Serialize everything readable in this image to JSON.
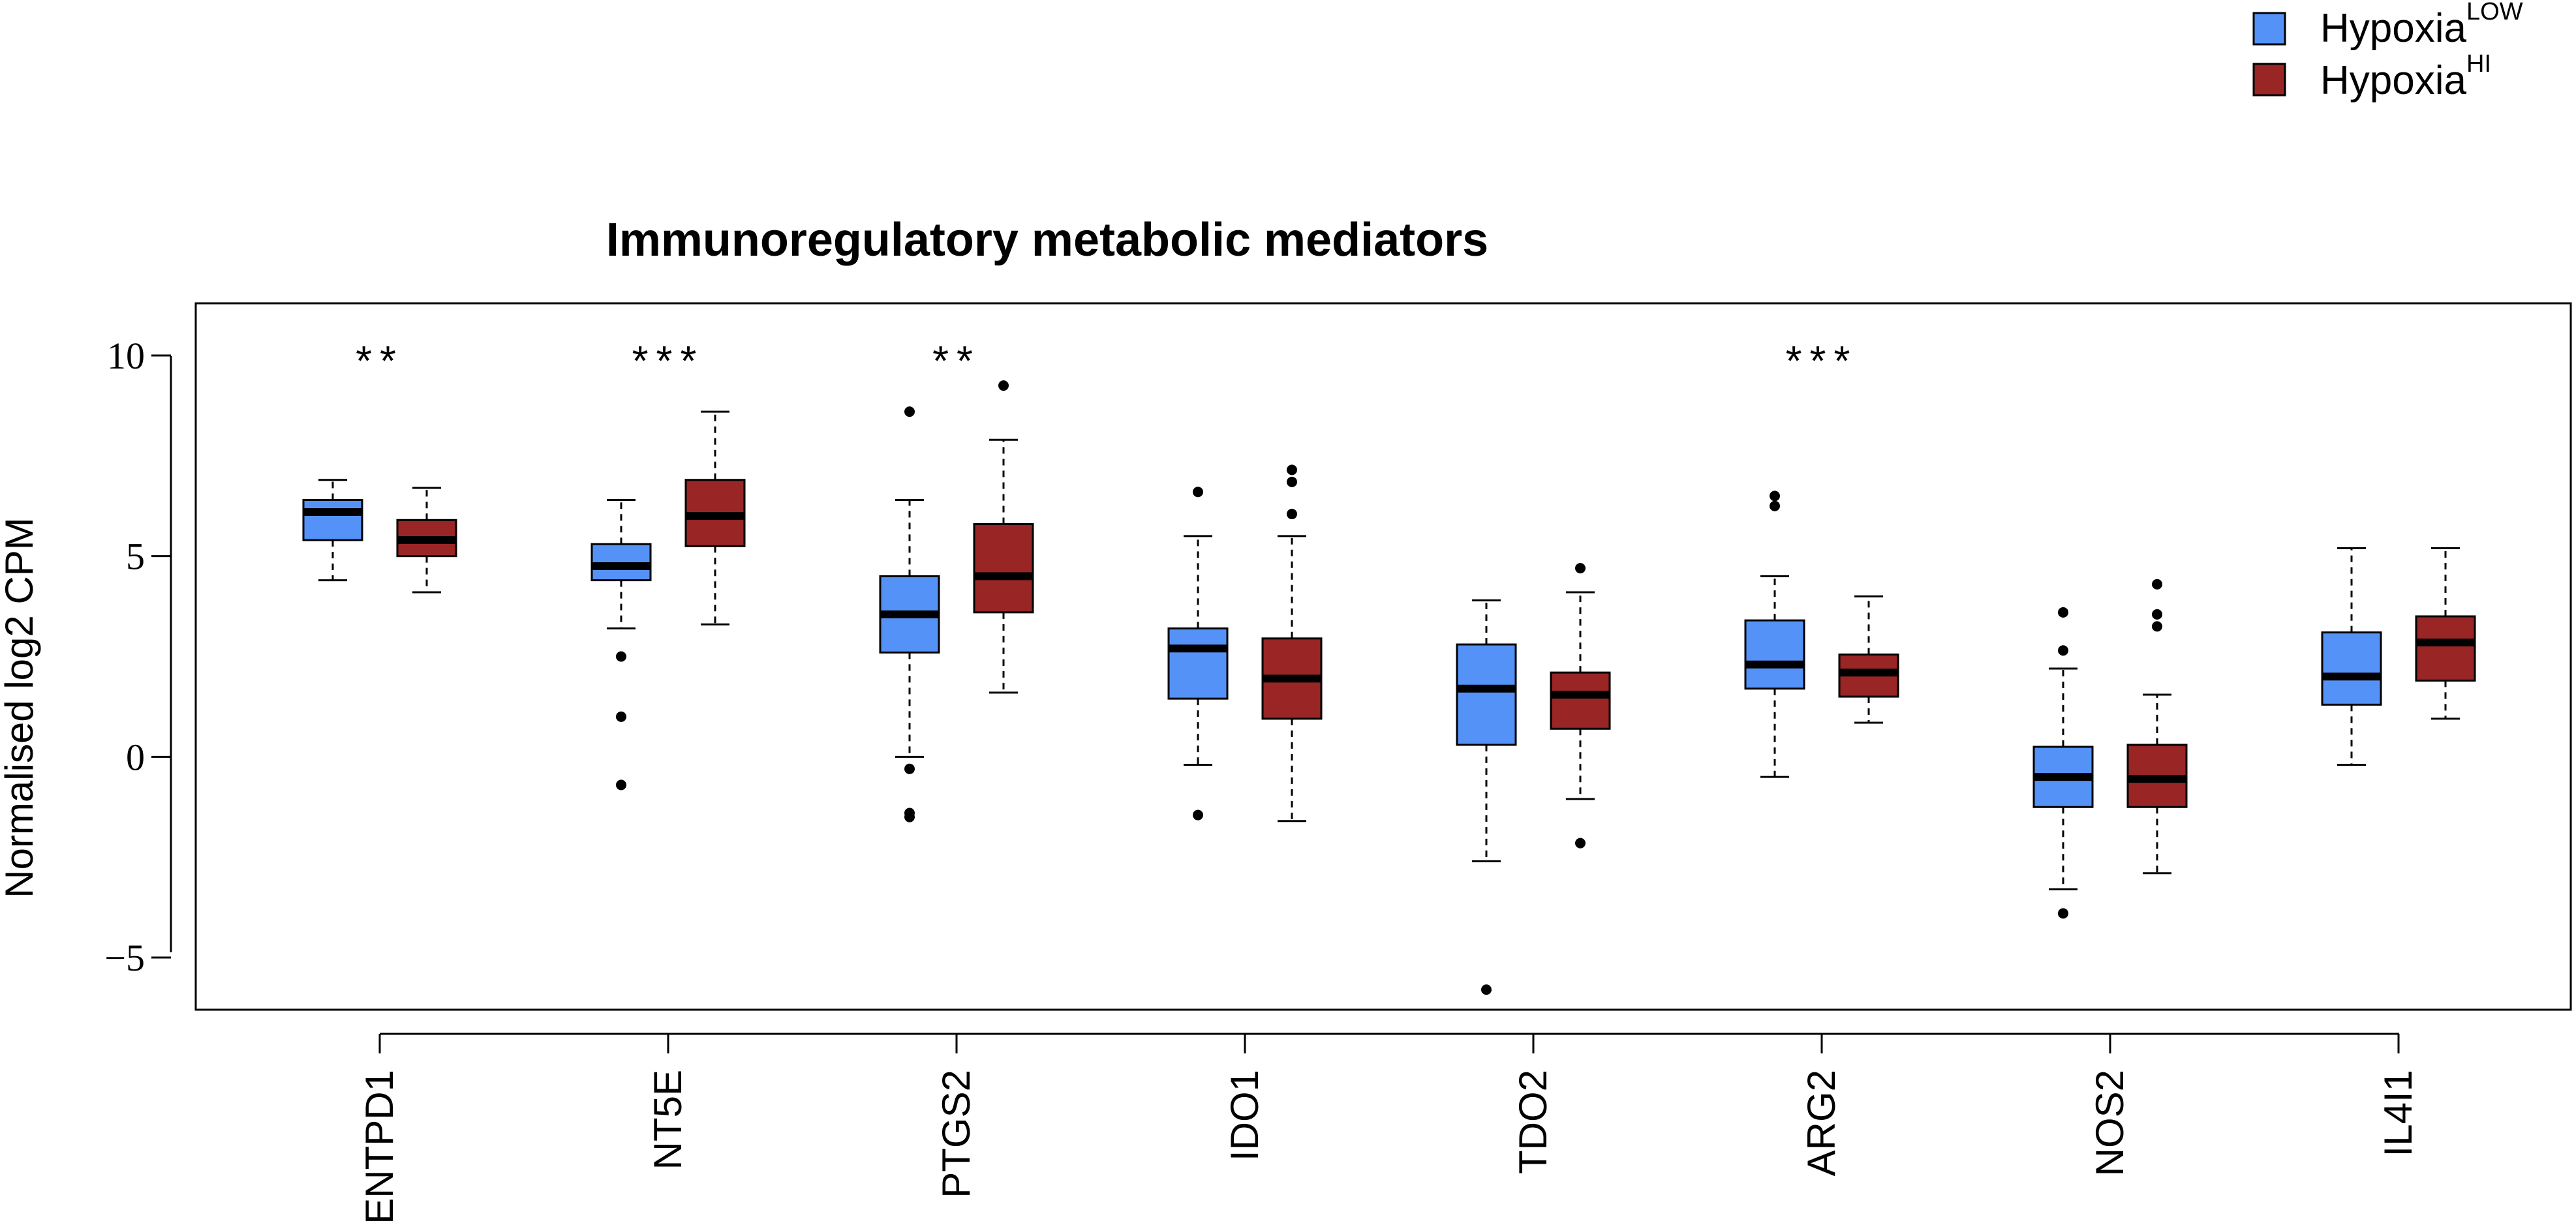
{
  "chart_data": {
    "type": "boxplot",
    "title": "Immunoregulatory metabolic mediators",
    "xlabel": "",
    "ylabel": "Normalised log2 CPM",
    "ylim": [
      -6.3,
      11.3
    ],
    "yticks": [
      10,
      5,
      0,
      -5
    ],
    "ytick_labels": [
      "10",
      "5",
      "0",
      "−5"
    ],
    "categories": [
      "ENTPD1",
      "NT5E",
      "PTGS2",
      "IDO1",
      "TDO2",
      "ARG2",
      "NOS2",
      "IL4I1"
    ],
    "significance": [
      "**",
      "***",
      "**",
      "",
      "",
      "***",
      "",
      ""
    ],
    "legend": [
      {
        "base": "Hypoxia",
        "sup": "LOW",
        "color": "#5592f7"
      },
      {
        "base": "Hypoxia",
        "sup": "HI",
        "color": "#992525"
      }
    ],
    "series": [
      {
        "name": "Hypoxia LOW",
        "color": "#5592f7",
        "boxes": [
          {
            "min": 4.4,
            "q1": 5.4,
            "median": 6.1,
            "q3": 6.4,
            "max": 6.9,
            "outliers": []
          },
          {
            "min": 3.2,
            "q1": 4.4,
            "median": 4.75,
            "q3": 5.3,
            "max": 6.4,
            "outliers": [
              2.5,
              1.0,
              -0.7
            ]
          },
          {
            "min": 0.0,
            "q1": 2.6,
            "median": 3.55,
            "q3": 4.5,
            "max": 6.4,
            "outliers": [
              8.6,
              -0.3,
              -1.4,
              -1.5
            ]
          },
          {
            "min": -0.2,
            "q1": 1.45,
            "median": 2.7,
            "q3": 3.2,
            "max": 5.5,
            "outliers": [
              6.6,
              -1.45
            ]
          },
          {
            "min": -2.6,
            "q1": 0.3,
            "median": 1.7,
            "q3": 2.8,
            "max": 3.9,
            "outliers": [
              -5.8
            ]
          },
          {
            "min": -0.5,
            "q1": 1.7,
            "median": 2.3,
            "q3": 3.4,
            "max": 4.5,
            "outliers": [
              6.5,
              6.25
            ]
          },
          {
            "min": -3.3,
            "q1": -1.25,
            "median": -0.5,
            "q3": 0.25,
            "max": 2.2,
            "outliers": [
              3.6,
              2.65,
              -3.9
            ]
          },
          {
            "min": -0.2,
            "q1": 1.3,
            "median": 2.0,
            "q3": 3.1,
            "max": 5.2,
            "outliers": []
          }
        ]
      },
      {
        "name": "Hypoxia HI",
        "color": "#992525",
        "boxes": [
          {
            "min": 4.1,
            "q1": 5.0,
            "median": 5.4,
            "q3": 5.9,
            "max": 6.7,
            "outliers": []
          },
          {
            "min": 3.3,
            "q1": 5.25,
            "median": 6.0,
            "q3": 6.9,
            "max": 8.6,
            "outliers": []
          },
          {
            "min": 1.6,
            "q1": 3.6,
            "median": 4.5,
            "q3": 5.8,
            "max": 7.9,
            "outliers": [
              9.25
            ]
          },
          {
            "min": -1.6,
            "q1": 0.95,
            "median": 1.95,
            "q3": 2.95,
            "max": 5.5,
            "outliers": [
              7.15,
              6.85,
              6.05
            ]
          },
          {
            "min": -1.05,
            "q1": 0.7,
            "median": 1.55,
            "q3": 2.1,
            "max": 4.1,
            "outliers": [
              4.7,
              -2.15
            ]
          },
          {
            "min": 0.85,
            "q1": 1.5,
            "median": 2.1,
            "q3": 2.55,
            "max": 4.0,
            "outliers": []
          },
          {
            "min": -2.9,
            "q1": -1.25,
            "median": -0.55,
            "q3": 0.3,
            "max": 1.55,
            "outliers": [
              4.3,
              3.55,
              3.25
            ]
          },
          {
            "min": 0.95,
            "q1": 1.9,
            "median": 2.85,
            "q3": 3.5,
            "max": 5.2,
            "outliers": []
          }
        ]
      }
    ]
  }
}
